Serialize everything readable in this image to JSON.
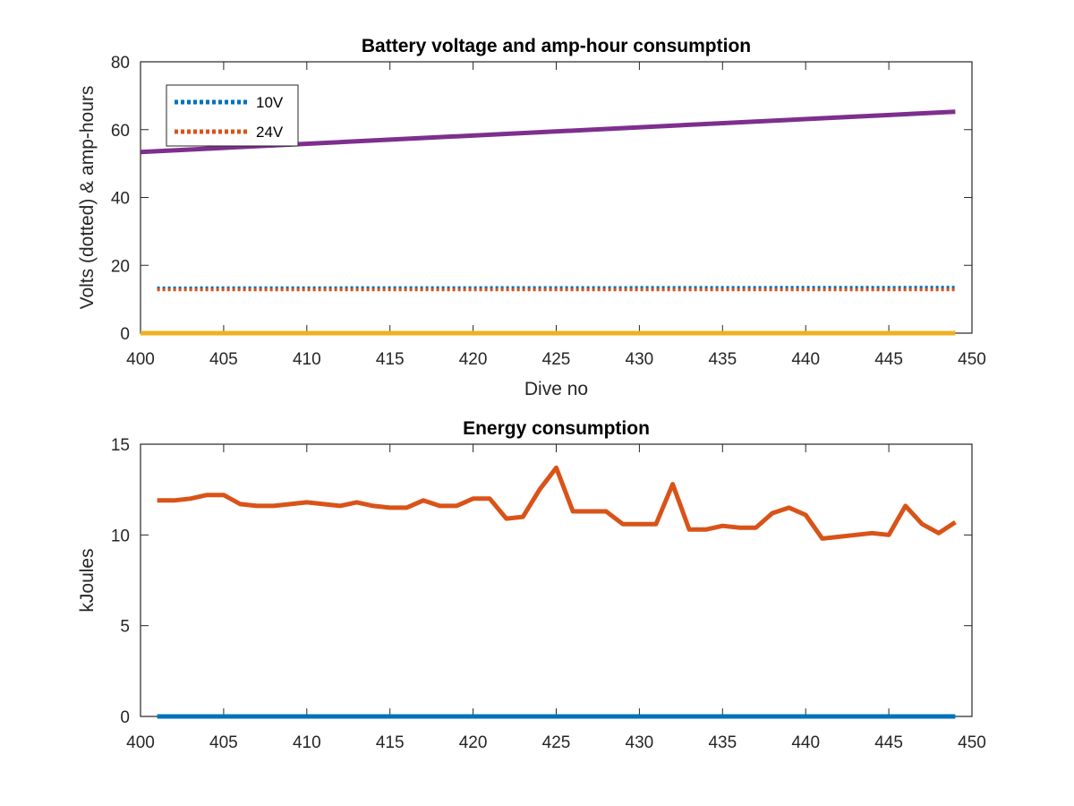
{
  "chart_data": [
    {
      "type": "line",
      "title": "Battery voltage and amp-hour consumption",
      "xlabel": "Dive no",
      "ylabel": "Volts (dotted) & amp-hours",
      "xlim": [
        400,
        450
      ],
      "ylim": [
        0,
        80
      ],
      "xticks": [
        400,
        405,
        410,
        415,
        420,
        425,
        430,
        435,
        440,
        445,
        450
      ],
      "yticks": [
        0,
        20,
        40,
        60,
        80
      ],
      "grid": false,
      "legend_position": "top-left",
      "series": [
        {
          "name": "10V",
          "style": "dotted",
          "color": "#0072BD",
          "x": [
            401,
            449
          ],
          "y": [
            13.3,
            13.5
          ]
        },
        {
          "name": "24V",
          "style": "dotted",
          "color": "#D95319",
          "x": [
            401,
            449
          ],
          "y": [
            12.8,
            12.8
          ]
        },
        {
          "style": "solid",
          "color": "#EDB120",
          "x": [
            400,
            449
          ],
          "y": [
            0,
            0
          ]
        },
        {
          "style": "solid",
          "color": "#7E2F8E",
          "x": [
            400,
            449
          ],
          "y": [
            53.4,
            65.3
          ]
        }
      ]
    },
    {
      "type": "line",
      "title": "Energy consumption",
      "xlabel": "",
      "ylabel": "kJoules",
      "xlim": [
        400,
        450
      ],
      "ylim": [
        0,
        15
      ],
      "xticks": [
        400,
        405,
        410,
        415,
        420,
        425,
        430,
        435,
        440,
        445,
        450
      ],
      "yticks": [
        0,
        5,
        10,
        15
      ],
      "grid": false,
      "series": [
        {
          "style": "solid",
          "color": "#0072BD",
          "x": [
            401,
            449
          ],
          "y": [
            0,
            0
          ]
        },
        {
          "style": "solid",
          "color": "#D95319",
          "x": [
            401,
            402,
            403,
            404,
            405,
            406,
            407,
            408,
            409,
            410,
            411,
            412,
            413,
            414,
            415,
            416,
            417,
            418,
            419,
            420,
            421,
            422,
            423,
            424,
            425,
            426,
            427,
            428,
            429,
            430,
            431,
            432,
            433,
            434,
            435,
            436,
            437,
            438,
            439,
            440,
            441,
            442,
            443,
            444,
            445,
            446,
            447,
            448,
            449
          ],
          "y": [
            11.9,
            11.9,
            12.0,
            12.2,
            12.2,
            11.7,
            11.6,
            11.6,
            11.7,
            11.8,
            11.7,
            11.6,
            11.8,
            11.6,
            11.5,
            11.5,
            11.9,
            11.6,
            11.6,
            12.0,
            12.0,
            10.9,
            11.0,
            12.5,
            13.7,
            11.3,
            11.3,
            11.3,
            10.6,
            10.6,
            10.6,
            12.8,
            10.3,
            10.3,
            10.5,
            10.4,
            10.4,
            11.2,
            11.5,
            11.1,
            9.8,
            9.9,
            10.0,
            10.1,
            10.0,
            11.6,
            10.6,
            10.1,
            10.7
          ]
        }
      ]
    }
  ]
}
